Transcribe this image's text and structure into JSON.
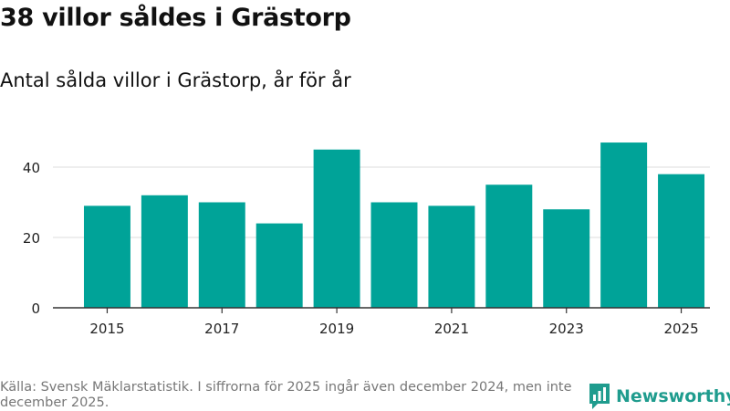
{
  "header": {
    "title": "38 villor såldes i Grästorp",
    "subtitle": "Antal sålda villor i Grästorp, år för år"
  },
  "footer": {
    "source": "Källa: Svensk Mäklarstatistik. I siffrorna för 2025 ingår även december 2024, men inte december 2025.",
    "logo_text": "Newsworthy"
  },
  "colors": {
    "bar": "#00a398",
    "grid": "#dddddd",
    "axis": "#333333",
    "brand": "#1f9c8e"
  },
  "chart_data": {
    "type": "bar",
    "title": "38 villor såldes i Grästorp",
    "subtitle": "Antal sålda villor i Grästorp, år för år",
    "xlabel": "",
    "ylabel": "",
    "categories": [
      "2015",
      "2016",
      "2017",
      "2018",
      "2019",
      "2020",
      "2021",
      "2022",
      "2023",
      "2024",
      "2025"
    ],
    "values": [
      29,
      32,
      30,
      24,
      45,
      30,
      29,
      35,
      28,
      47,
      38
    ],
    "x_tick_labels": [
      "2015",
      "2017",
      "2019",
      "2021",
      "2023",
      "2025"
    ],
    "y_ticks": [
      0,
      20,
      40
    ],
    "ylim": [
      0,
      50
    ],
    "grid": true,
    "legend": "none"
  }
}
